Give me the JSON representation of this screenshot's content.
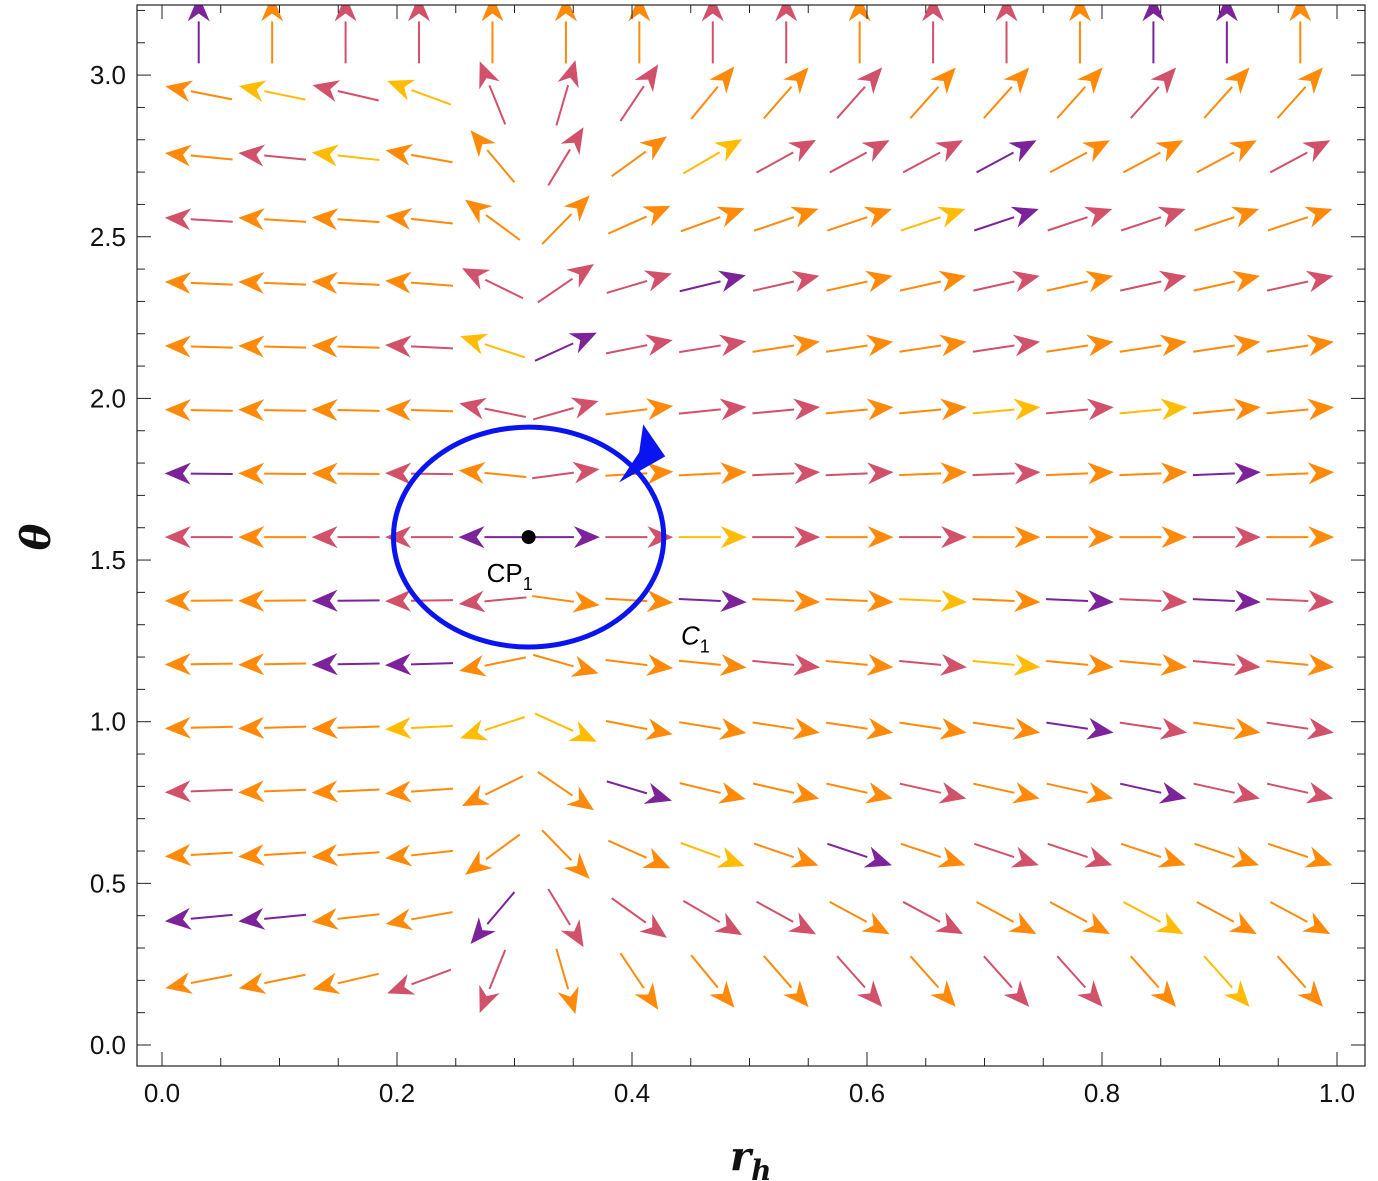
{
  "chart_data": {
    "type": "vector-field",
    "title": "",
    "xlabel": "r",
    "xlabel_sub": "h",
    "ylabel": "θ",
    "xlim": [
      -0.05,
      1.01
    ],
    "ylim": [
      -0.06,
      3.22
    ],
    "x_ticks": [
      "0.0",
      "0.2",
      "0.4",
      "0.6",
      "0.8",
      "1.0"
    ],
    "x_tick_values": [
      0,
      0.2,
      0.4,
      0.6,
      0.8,
      1.0
    ],
    "y_ticks": [
      "0.0",
      "0.5",
      "1.0",
      "1.5",
      "2.0",
      "2.5",
      "3.0"
    ],
    "y_tick_values": [
      0,
      0.5,
      1.0,
      1.5,
      2.0,
      2.5,
      3.0
    ],
    "grid": false,
    "field": {
      "r_samples": 16,
      "theta_samples": 16,
      "r_range": [
        0,
        1
      ],
      "theta_range": [
        0,
        3.14159
      ],
      "zero_r": 0.31
    },
    "palette": [
      "#FF8A0A",
      "#D2516A",
      "#FFBC00",
      "#7C2399"
    ],
    "critical_point": {
      "label": "CP",
      "label_sub": "1",
      "r": 0.312,
      "theta": 1.571
    },
    "contour": {
      "label": "C",
      "label_sub": "1",
      "center_r": 0.312,
      "center_theta": 1.571,
      "radius_r": 0.115,
      "radius_theta": 0.34,
      "color": "#0A14F0",
      "direction": "counterclockwise",
      "label_r": 0.44,
      "label_theta": 1.27
    }
  }
}
